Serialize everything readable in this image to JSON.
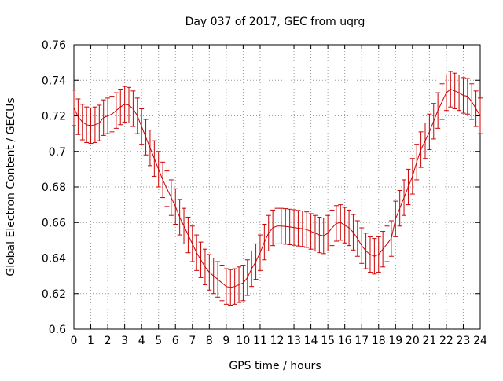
{
  "chart_data": {
    "type": "line",
    "title": "Day 037 of 2017, GEC from uqrg",
    "xlabel": "GPS time / hours",
    "ylabel": "Global Electron Content / GECUs",
    "xlim": [
      0,
      24
    ],
    "ylim": [
      0.6,
      0.76
    ],
    "xticks": [
      0,
      1,
      2,
      3,
      4,
      5,
      6,
      7,
      8,
      9,
      10,
      11,
      12,
      13,
      14,
      15,
      16,
      17,
      18,
      19,
      20,
      21,
      22,
      23,
      24
    ],
    "xtick_labels": [
      "0",
      "1",
      "2",
      "3",
      "4",
      "5",
      "6",
      "7",
      "8",
      "9",
      "10",
      "11",
      "12",
      "13",
      "14",
      "15",
      "16",
      "17",
      "18",
      "19",
      "20",
      "21",
      "22",
      "23",
      "24"
    ],
    "yticks": [
      0.6,
      0.62,
      0.64,
      0.66,
      0.68,
      0.7,
      0.72,
      0.74,
      0.76
    ],
    "ytick_labels": [
      "0.6",
      "0.62",
      "0.64",
      "0.66",
      "0.68",
      "0.7",
      "0.72",
      "0.74",
      "0.76"
    ],
    "grid": true,
    "line_color": "#cc0000",
    "series": [
      {
        "x": [
          0,
          0.25,
          0.5,
          0.75,
          1,
          1.25,
          1.5,
          1.75,
          2,
          2.25,
          2.5,
          2.75,
          3,
          3.25,
          3.5,
          3.75,
          4,
          4.25,
          4.5,
          4.75,
          5,
          5.25,
          5.5,
          5.75,
          6,
          6.25,
          6.5,
          6.75,
          7,
          7.25,
          7.5,
          7.75,
          8,
          8.25,
          8.5,
          8.75,
          9,
          9.25,
          9.5,
          9.75,
          10,
          10.25,
          10.5,
          10.75,
          11,
          11.25,
          11.5,
          11.75,
          12,
          12.25,
          12.5,
          12.75,
          13,
          13.25,
          13.5,
          13.75,
          14,
          14.25,
          14.5,
          14.75,
          15,
          15.25,
          15.5,
          15.75,
          16,
          16.25,
          16.5,
          16.75,
          17,
          17.25,
          17.5,
          17.75,
          18,
          18.25,
          18.5,
          18.75,
          19,
          19.25,
          19.5,
          19.75,
          20,
          20.25,
          20.5,
          20.75,
          21,
          21.25,
          21.5,
          21.75,
          22,
          22.25,
          22.5,
          22.75,
          23,
          23.25,
          23.5,
          23.75,
          24
        ],
        "y": [
          0.7245,
          0.7195,
          0.7165,
          0.715,
          0.7145,
          0.715,
          0.716,
          0.719,
          0.72,
          0.721,
          0.723,
          0.725,
          0.7265,
          0.726,
          0.724,
          0.72,
          0.714,
          0.708,
          0.702,
          0.696,
          0.69,
          0.684,
          0.679,
          0.674,
          0.669,
          0.663,
          0.658,
          0.653,
          0.648,
          0.643,
          0.639,
          0.635,
          0.632,
          0.63,
          0.628,
          0.626,
          0.624,
          0.6235,
          0.624,
          0.625,
          0.626,
          0.629,
          0.634,
          0.638,
          0.643,
          0.649,
          0.654,
          0.657,
          0.658,
          0.658,
          0.6578,
          0.6575,
          0.6572,
          0.6568,
          0.6565,
          0.656,
          0.655,
          0.654,
          0.653,
          0.6525,
          0.654,
          0.657,
          0.6595,
          0.66,
          0.6585,
          0.657,
          0.6545,
          0.651,
          0.647,
          0.644,
          0.642,
          0.641,
          0.642,
          0.645,
          0.648,
          0.651,
          0.662,
          0.668,
          0.674,
          0.68,
          0.686,
          0.694,
          0.701,
          0.706,
          0.711,
          0.717,
          0.723,
          0.728,
          0.733,
          0.735,
          0.734,
          0.733,
          0.7315,
          0.731,
          0.728,
          0.724,
          0.72
        ],
        "error": 0.01
      }
    ]
  }
}
